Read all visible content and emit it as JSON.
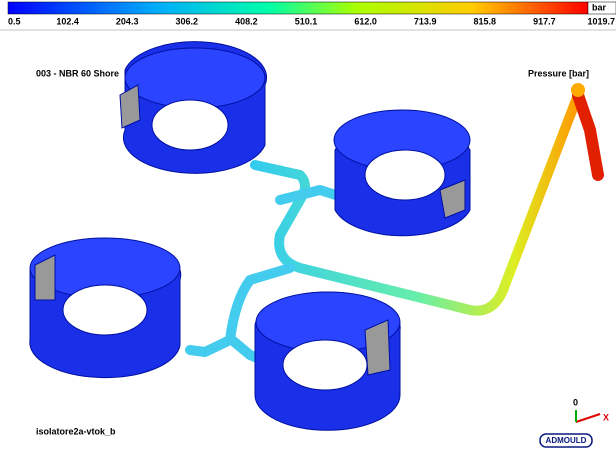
{
  "colorbar": {
    "unit": "bar",
    "ticks": [
      "0.5",
      "102.4",
      "204.3",
      "306.2",
      "408.2",
      "510.1",
      "612.0",
      "713.9",
      "815.8",
      "917.7",
      "1019.7"
    ]
  },
  "material": "003 - NBR 60 Shore",
  "result": "Pressure [bar]",
  "model": "isolatore2a-vtok_b",
  "axis": {
    "origin": "0",
    "x": "X"
  },
  "logo": "ADMOULD"
}
